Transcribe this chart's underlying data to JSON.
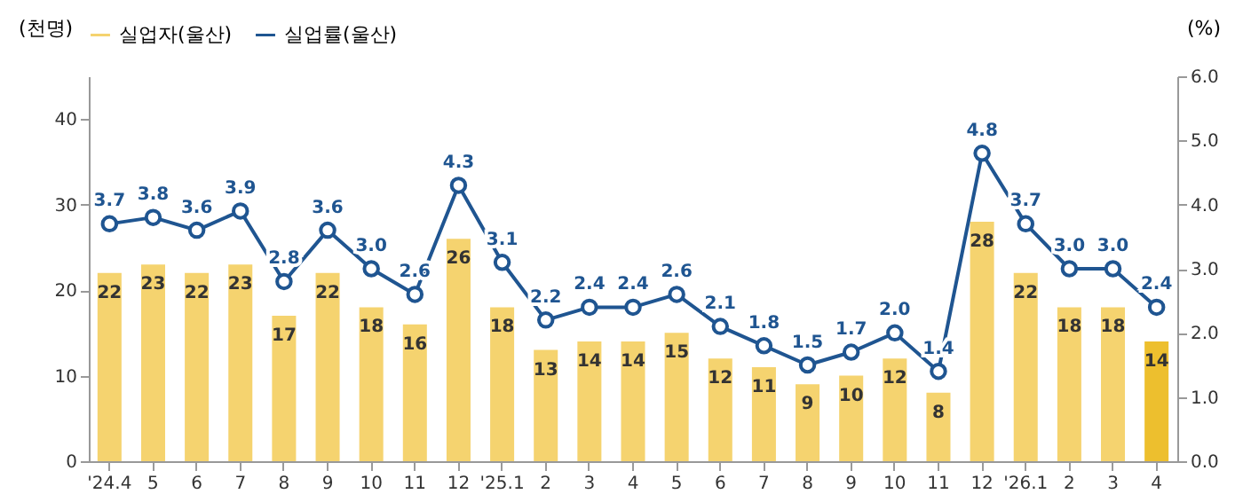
{
  "chart_data": {
    "type": "bar",
    "ylabel": "(천명)",
    "y2label": "(%)",
    "categories": [
      "'24.4",
      "5",
      "6",
      "7",
      "8",
      "9",
      "10",
      "11",
      "12",
      "'25.1",
      "2",
      "3",
      "4",
      "5",
      "6",
      "7",
      "8",
      "9",
      "10",
      "11",
      "12",
      "'26.1",
      "2",
      "3",
      "4"
    ],
    "ylim": [
      0,
      45
    ],
    "yticks": [
      0,
      10,
      20,
      30,
      40
    ],
    "y2lim": [
      0,
      6
    ],
    "y2ticks": [
      {
        "value": 0,
        "label": "0.0"
      },
      {
        "value": 1,
        "label": "1.0"
      },
      {
        "value": 2,
        "label": "2.0"
      },
      {
        "value": 3,
        "label": "3.0"
      },
      {
        "value": 4,
        "label": "4.0"
      },
      {
        "value": 5,
        "label": "5.0"
      },
      {
        "value": 6,
        "label": "6.0"
      }
    ],
    "series": [
      {
        "name": "실업자(울산)",
        "type": "bar",
        "color": "#f5d36f",
        "colors": [
          "#f5d36f",
          "#f5d36f",
          "#f5d36f",
          "#f5d36f",
          "#f5d36f",
          "#f5d36f",
          "#f5d36f",
          "#f5d36f",
          "#f5d36f",
          "#f5d36f",
          "#f5d36f",
          "#f5d36f",
          "#f5d36f",
          "#f5d36f",
          "#f5d36f",
          "#f5d36f",
          "#f5d36f",
          "#f5d36f",
          "#f5d36f",
          "#f5d36f",
          "#f5d36f",
          "#f5d36f",
          "#f5d36f",
          "#f5d36f",
          "#edbf2e"
        ],
        "values": [
          22,
          23,
          22,
          23,
          17,
          22,
          18,
          16,
          26,
          18,
          13,
          14,
          14,
          15,
          12,
          11,
          9,
          10,
          12,
          8,
          28,
          22,
          18,
          18,
          14
        ],
        "value_labels": [
          "22",
          "23",
          "22",
          "23",
          "17",
          "22",
          "18",
          "16",
          "26",
          "18",
          "13",
          "14",
          "14",
          "15",
          "12",
          "11",
          "9",
          "10",
          "12",
          "8",
          "28",
          "22",
          "18",
          "18",
          "14"
        ]
      },
      {
        "name": "실업률(울산)",
        "type": "line",
        "axis": "y2",
        "color": "#1f5591",
        "marker": "circle",
        "values": [
          3.7,
          3.8,
          3.6,
          3.9,
          2.8,
          3.6,
          3.0,
          2.6,
          4.3,
          3.1,
          2.2,
          2.4,
          2.4,
          2.6,
          2.1,
          1.8,
          1.5,
          1.7,
          2.0,
          1.4,
          4.8,
          3.7,
          3.0,
          3.0,
          2.4
        ],
        "value_labels": [
          "3.7",
          "3.8",
          "3.6",
          "3.9",
          "2.8",
          "3.6",
          "3.0",
          "2.6",
          "4.3",
          "3.1",
          "2.2",
          "2.4",
          "2.4",
          "2.6",
          "2.1",
          "1.8",
          "1.5",
          "1.7",
          "2.0",
          "1.4",
          "4.8",
          "3.7",
          "3.0",
          "3.0",
          "2.4"
        ]
      }
    ],
    "grid": false,
    "legend": "top"
  }
}
